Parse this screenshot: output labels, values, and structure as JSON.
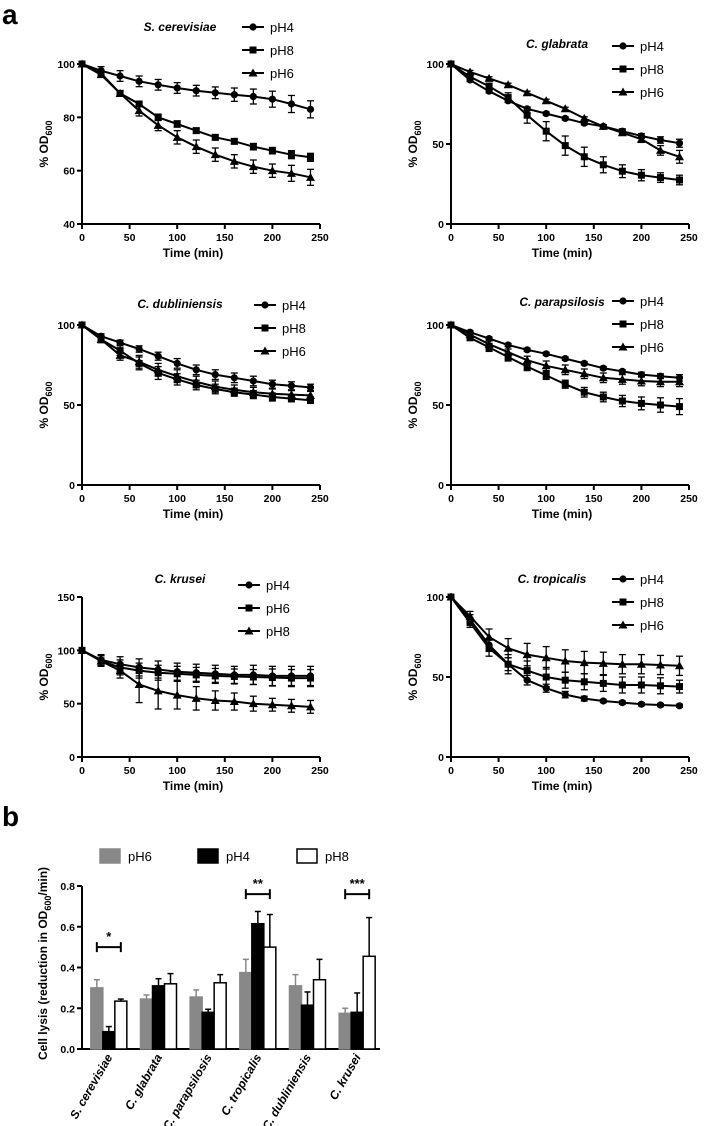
{
  "panel_labels": {
    "a": "a",
    "b": "b"
  },
  "ylabel_prefix": "% OD",
  "ylabel_sub": "600",
  "chart_data": [
    {
      "type": "line",
      "title": "S. cerevisiae",
      "xlabel": "Time (min)",
      "xlim": [
        0,
        250
      ],
      "xticks": [
        0,
        50,
        100,
        150,
        200,
        250
      ],
      "ylim": [
        40,
        100
      ],
      "yticks": [
        40,
        60,
        80,
        100
      ],
      "x": [
        0,
        20,
        40,
        60,
        80,
        100,
        120,
        140,
        160,
        180,
        200,
        220,
        240
      ],
      "series": [
        {
          "name": "pH4",
          "marker": "circle",
          "values": [
            100,
            97.5,
            95.5,
            93.5,
            92.2,
            91,
            90,
            89.2,
            88.5,
            87.8,
            86.8,
            85,
            83
          ],
          "errors": [
            0.5,
            1.5,
            2,
            2,
            2,
            2,
            2,
            2.2,
            2.5,
            2.8,
            3,
            3.2,
            3.2
          ]
        },
        {
          "name": "pH8",
          "marker": "square",
          "values": [
            100,
            96.5,
            89,
            85,
            80,
            77.5,
            75,
            72.5,
            71,
            69,
            67.5,
            66,
            65
          ],
          "errors": [
            0.5,
            1,
            1,
            1,
            1.2,
            1.2,
            1,
            1,
            1,
            1.2,
            1.2,
            1.5,
            1.5
          ]
        },
        {
          "name": "pH6",
          "marker": "triangle",
          "values": [
            100,
            96,
            89,
            82.5,
            77,
            72.5,
            69,
            66,
            63.5,
            61.5,
            60,
            59,
            57.5
          ],
          "errors": [
            0.5,
            1,
            1,
            2,
            2,
            2.5,
            2.5,
            2.5,
            2.5,
            2.5,
            2.5,
            3,
            3
          ]
        }
      ]
    },
    {
      "type": "line",
      "title": "C. glabrata",
      "xlabel": "Time (min)",
      "xlim": [
        0,
        250
      ],
      "xticks": [
        0,
        50,
        100,
        150,
        200,
        250
      ],
      "ylim": [
        0,
        100
      ],
      "yticks": [
        0,
        50,
        100
      ],
      "x": [
        0,
        20,
        40,
        60,
        80,
        100,
        120,
        140,
        160,
        180,
        200,
        220,
        240
      ],
      "series": [
        {
          "name": "pH4",
          "marker": "circle",
          "values": [
            100,
            90,
            83,
            77,
            72,
            69,
            66,
            63,
            61,
            58,
            55,
            52.5,
            50.5
          ],
          "errors": [
            0.5,
            1,
            1,
            1,
            1,
            1,
            1,
            1,
            1,
            1.5,
            1.5,
            2,
            2.5
          ]
        },
        {
          "name": "pH8",
          "marker": "square",
          "values": [
            100,
            92,
            86,
            79,
            68,
            58,
            49,
            42,
            37,
            33,
            30.5,
            29,
            27.5
          ],
          "errors": [
            0.5,
            1.5,
            2,
            3,
            5,
            6,
            6,
            6,
            5,
            4,
            3.5,
            3,
            3
          ]
        },
        {
          "name": "pH6",
          "marker": "triangle",
          "values": [
            100,
            95,
            91,
            87,
            82,
            77,
            72,
            66,
            61,
            57,
            53,
            46,
            42
          ],
          "errors": [
            0.5,
            1,
            1,
            1,
            1,
            1,
            1,
            1,
            1,
            1.5,
            2,
            3,
            4
          ]
        }
      ]
    },
    {
      "type": "line",
      "title": "C. dubliniensis",
      "xlabel": "Time (min)",
      "xlim": [
        0,
        250
      ],
      "xticks": [
        0,
        50,
        100,
        150,
        200,
        250
      ],
      "ylim": [
        0,
        100
      ],
      "yticks": [
        0,
        50,
        100
      ],
      "x": [
        0,
        20,
        40,
        60,
        80,
        100,
        120,
        140,
        160,
        180,
        200,
        220,
        240
      ],
      "series": [
        {
          "name": "pH4",
          "marker": "circle",
          "values": [
            100,
            93,
            89,
            85,
            80.5,
            76,
            72,
            69,
            67,
            65,
            63,
            62,
            61
          ],
          "errors": [
            0.5,
            1.5,
            1.5,
            2,
            2.5,
            3,
            3,
            3,
            3,
            3,
            2.5,
            2.5,
            2
          ]
        },
        {
          "name": "pH8",
          "marker": "square",
          "values": [
            100,
            91,
            84,
            76,
            70,
            66,
            62.5,
            60,
            58,
            56.5,
            55,
            54,
            53
          ],
          "errors": [
            0.5,
            2,
            3,
            4,
            4,
            3.5,
            3,
            3,
            2.5,
            2.5,
            2.5,
            2,
            2
          ]
        },
        {
          "name": "pH6",
          "marker": "triangle",
          "values": [
            100,
            91,
            81,
            77,
            72,
            68,
            64.5,
            61.5,
            59.5,
            58,
            57,
            56.5,
            56
          ],
          "errors": [
            0.5,
            2,
            3,
            4,
            4,
            4,
            3.5,
            3.5,
            3,
            3,
            3,
            2.5,
            2.5
          ]
        }
      ]
    },
    {
      "type": "line",
      "title": "C. parapsilosis",
      "xlabel": "Time (min)",
      "xlim": [
        0,
        250
      ],
      "xticks": [
        0,
        50,
        100,
        150,
        200,
        250
      ],
      "ylim": [
        0,
        100
      ],
      "yticks": [
        0,
        50,
        100
      ],
      "x": [
        0,
        20,
        40,
        60,
        80,
        100,
        120,
        140,
        160,
        180,
        200,
        220,
        240
      ],
      "series": [
        {
          "name": "pH4",
          "marker": "circle",
          "values": [
            100,
            95.5,
            91.5,
            87.5,
            84.5,
            82,
            79,
            76,
            73,
            71,
            69,
            68,
            67
          ],
          "errors": [
            0.5,
            1,
            1,
            1,
            1,
            1,
            1,
            1,
            1,
            1,
            1.5,
            1.5,
            2
          ]
        },
        {
          "name": "pH8",
          "marker": "square",
          "values": [
            100,
            92,
            86,
            80,
            74,
            68.5,
            63,
            58,
            55,
            52.5,
            51,
            50,
            49
          ],
          "errors": [
            0.5,
            1.5,
            2.5,
            2.5,
            2.5,
            2.5,
            2.5,
            3,
            3,
            3.5,
            4,
            4.5,
            5
          ]
        },
        {
          "name": "pH6",
          "marker": "triangle",
          "values": [
            100,
            94,
            88,
            83,
            78,
            74.5,
            72,
            69.5,
            67,
            66,
            65,
            64.5,
            64.5
          ],
          "errors": [
            0.5,
            1.5,
            2,
            2,
            2.5,
            3,
            3,
            3,
            3,
            3,
            3,
            3,
            3
          ]
        }
      ]
    },
    {
      "type": "line",
      "title": "C. krusei",
      "xlabel": "Time (min)",
      "xlim": [
        0,
        250
      ],
      "xticks": [
        0,
        50,
        100,
        150,
        200,
        250
      ],
      "ylim": [
        0,
        150
      ],
      "yticks": [
        0,
        50,
        100,
        150
      ],
      "x": [
        0,
        20,
        40,
        60,
        80,
        100,
        120,
        140,
        160,
        180,
        200,
        220,
        240
      ],
      "series": [
        {
          "name": "pH4",
          "marker": "circle",
          "values": [
            100,
            91,
            87,
            84,
            82,
            80,
            79,
            78,
            77,
            77,
            76,
            76,
            76
          ],
          "errors": [
            1,
            5,
            7,
            8,
            8,
            8,
            8,
            8,
            8,
            9,
            9,
            9,
            9
          ]
        },
        {
          "name": "pH6",
          "marker": "square",
          "values": [
            100,
            90,
            84,
            81,
            79,
            78,
            77,
            76,
            75.5,
            75,
            74.5,
            74,
            74
          ],
          "errors": [
            1,
            5,
            7,
            7,
            7,
            7,
            7,
            7,
            7,
            7,
            8,
            8,
            8
          ]
        },
        {
          "name": "pH8",
          "marker": "triangle",
          "values": [
            100,
            90,
            81,
            68,
            62,
            58,
            55,
            53,
            52,
            50,
            49,
            48,
            47
          ],
          "errors": [
            1,
            5,
            7,
            17,
            17,
            13,
            11,
            9,
            8,
            7,
            6,
            6,
            6
          ]
        }
      ]
    },
    {
      "type": "line",
      "title": "C. tropicalis",
      "xlabel": "Time (min)",
      "xlim": [
        0,
        250
      ],
      "xticks": [
        0,
        50,
        100,
        150,
        200,
        250
      ],
      "ylim": [
        0,
        100
      ],
      "yticks": [
        0,
        50,
        100
      ],
      "x": [
        0,
        20,
        40,
        60,
        80,
        100,
        120,
        140,
        160,
        180,
        200,
        220,
        240
      ],
      "series": [
        {
          "name": "pH4",
          "marker": "circle",
          "values": [
            100,
            86,
            70,
            58,
            48,
            43,
            39,
            36.5,
            35,
            34,
            33,
            32.5,
            32
          ],
          "errors": [
            0.5,
            3,
            4,
            4,
            3,
            2.5,
            2,
            1.5,
            1,
            1,
            1,
            1,
            1
          ]
        },
        {
          "name": "pH8",
          "marker": "square",
          "values": [
            100,
            84,
            68,
            58,
            54,
            50,
            48,
            47,
            46,
            45,
            45,
            44.5,
            44
          ],
          "errors": [
            0.5,
            3,
            5,
            6,
            6,
            6,
            5,
            5,
            5,
            5,
            5,
            5,
            4
          ]
        },
        {
          "name": "pH6",
          "marker": "triangle",
          "values": [
            100,
            88,
            75,
            68,
            64,
            62,
            60,
            59,
            58.5,
            58,
            58,
            57.5,
            57
          ],
          "errors": [
            0.5,
            3,
            5,
            6,
            7,
            7,
            7,
            7,
            7,
            6,
            6,
            6,
            6
          ]
        }
      ]
    },
    {
      "type": "bar",
      "title": "",
      "ylabel": "Cell lysis (reduction in OD600/min)",
      "ylabel_prefix": "Cell lysis (reduction in OD",
      "ylabel_sub": "600",
      "ylabel_suffix": "/min)",
      "ylim": [
        0,
        0.8
      ],
      "yticks": [
        0.0,
        0.2,
        0.4,
        0.6,
        0.8
      ],
      "ytick_labels": [
        "0.0",
        "0.2",
        "0.4",
        "0.6",
        "0.8"
      ],
      "categories": [
        "S. cerevisiae",
        "C. glabrata",
        "C. parapsilosis",
        "C. tropicalis",
        "C. dubliniensis",
        "C. krusei"
      ],
      "series": [
        {
          "name": "pH6",
          "color": "#888888",
          "values": [
            0.3,
            0.245,
            0.255,
            0.375,
            0.31,
            0.175
          ],
          "errors": [
            0.04,
            0.02,
            0.035,
            0.065,
            0.055,
            0.025
          ]
        },
        {
          "name": "pH4",
          "color": "#000000",
          "values": [
            0.085,
            0.31,
            0.18,
            0.615,
            0.215,
            0.18
          ],
          "errors": [
            0.025,
            0.035,
            0.015,
            0.06,
            0.065,
            0.095
          ]
        },
        {
          "name": "pH8",
          "color": "#ffffff",
          "values": [
            0.235,
            0.32,
            0.325,
            0.5,
            0.34,
            0.455
          ],
          "errors": [
            0.01,
            0.05,
            0.04,
            0.16,
            0.1,
            0.19
          ]
        }
      ],
      "significance": [
        {
          "category_index": 0,
          "label": "*",
          "y": 0.5
        },
        {
          "category_index": 3,
          "label": "**",
          "y": 0.76
        },
        {
          "category_index": 5,
          "label": "***",
          "y": 0.76
        }
      ]
    }
  ]
}
